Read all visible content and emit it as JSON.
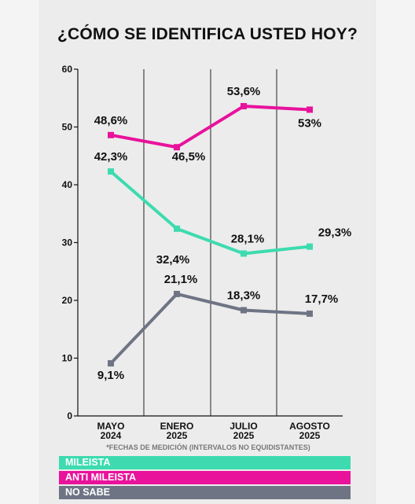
{
  "title": "¿CÓMO SE IDENTIFICA USTED HOY?",
  "footnote": "*FECHAS DE MEDICIÓN (INTERVALOS NO EQUIDISTANTES)",
  "chart_data": {
    "type": "line",
    "title": "¿CÓMO SE IDENTIFICA USTED HOY?",
    "categories": [
      "MAYO 2024",
      "ENERO 2025",
      "JULIO 2025",
      "AGOSTO 2025"
    ],
    "category_lines": [
      [
        "MAYO",
        "2024"
      ],
      [
        "ENERO",
        "2025"
      ],
      [
        "JULIO",
        "2025"
      ],
      [
        "AGOSTO",
        "2025"
      ]
    ],
    "yticks": [
      0,
      10,
      20,
      30,
      40,
      50,
      60
    ],
    "ylim": [
      0,
      60
    ],
    "grid": "vertical",
    "legend_position": "bottom",
    "series": [
      {
        "name": "MILEISTA",
        "color": "#3ddbaf",
        "values": [
          42.3,
          32.4,
          28.1,
          29.3
        ],
        "labels": [
          "42,3%",
          "32,4%",
          "28,1%",
          "29,3%"
        ]
      },
      {
        "name": "ANTI MILEISTA",
        "color": "#e8129b",
        "values": [
          48.6,
          46.5,
          53.6,
          53
        ],
        "labels": [
          "48,6%",
          "46,5%",
          "53,6%",
          "53%"
        ]
      },
      {
        "name": "NO SABE",
        "color": "#6f7485",
        "values": [
          9.1,
          21.1,
          18.3,
          17.7
        ],
        "labels": [
          "9,1%",
          "21,1%",
          "18,3%",
          "17,7%"
        ]
      }
    ]
  }
}
